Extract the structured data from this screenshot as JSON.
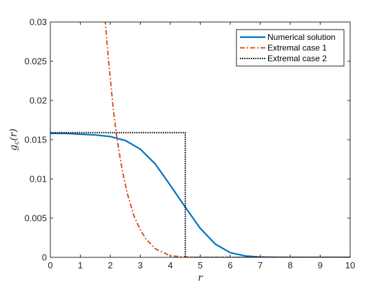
{
  "chart_data": {
    "type": "line",
    "title": "",
    "xlabel": "r",
    "ylabel": "g_c(r)",
    "xlim": [
      0,
      10
    ],
    "ylim": [
      0,
      0.03
    ],
    "x_ticks": [
      0,
      1,
      2,
      3,
      4,
      5,
      6,
      7,
      8,
      9,
      10
    ],
    "x_tick_labels": [
      "0",
      "1",
      "2",
      "3",
      "4",
      "5",
      "6",
      "7",
      "8",
      "9",
      "10"
    ],
    "y_ticks": [
      0,
      0.005,
      0.01,
      0.015,
      0.02,
      0.025,
      0.03
    ],
    "y_tick_labels": [
      "0",
      "0.005",
      "0.01",
      "0.015",
      "0.02",
      "0.025",
      "0.03"
    ],
    "grid": false,
    "legend_position": "top-right",
    "series": [
      {
        "name": "Numerical solution",
        "color": "#0072BD",
        "style": "solid",
        "x": [
          0,
          0.5,
          1,
          1.5,
          2,
          2.5,
          3,
          3.5,
          4,
          4.5,
          5,
          5.5,
          6,
          6.5,
          7,
          7.5,
          8,
          9,
          10
        ],
        "y": [
          0.0158,
          0.0158,
          0.0157,
          0.0156,
          0.0154,
          0.0149,
          0.0138,
          0.0119,
          0.0092,
          0.0064,
          0.0037,
          0.0017,
          0.0006,
          0.00018,
          4e-05,
          1e-05,
          0,
          0,
          0
        ]
      },
      {
        "name": "Extremal case 1",
        "color": "#D95319",
        "style": "dashdot",
        "x": [
          1.8,
          1.9,
          2,
          2.1,
          2.2,
          2.3,
          2.4,
          2.5,
          2.6,
          2.8,
          3,
          3.2,
          3.5,
          4,
          4.5,
          5,
          6,
          7,
          8,
          9,
          10
        ],
        "y": [
          0.0316,
          0.0269,
          0.0228,
          0.0189,
          0.0158,
          0.0133,
          0.0111,
          0.0093,
          0.0077,
          0.0052,
          0.0035,
          0.0023,
          0.0011,
          0.0002,
          3e-05,
          0,
          0,
          0,
          0,
          0,
          0
        ]
      },
      {
        "name": "Extremal case 2",
        "color": "#000000",
        "style": "dotted",
        "x": [
          0,
          4.5,
          4.5,
          10
        ],
        "y": [
          0.0159,
          0.0159,
          0,
          0
        ]
      }
    ]
  }
}
